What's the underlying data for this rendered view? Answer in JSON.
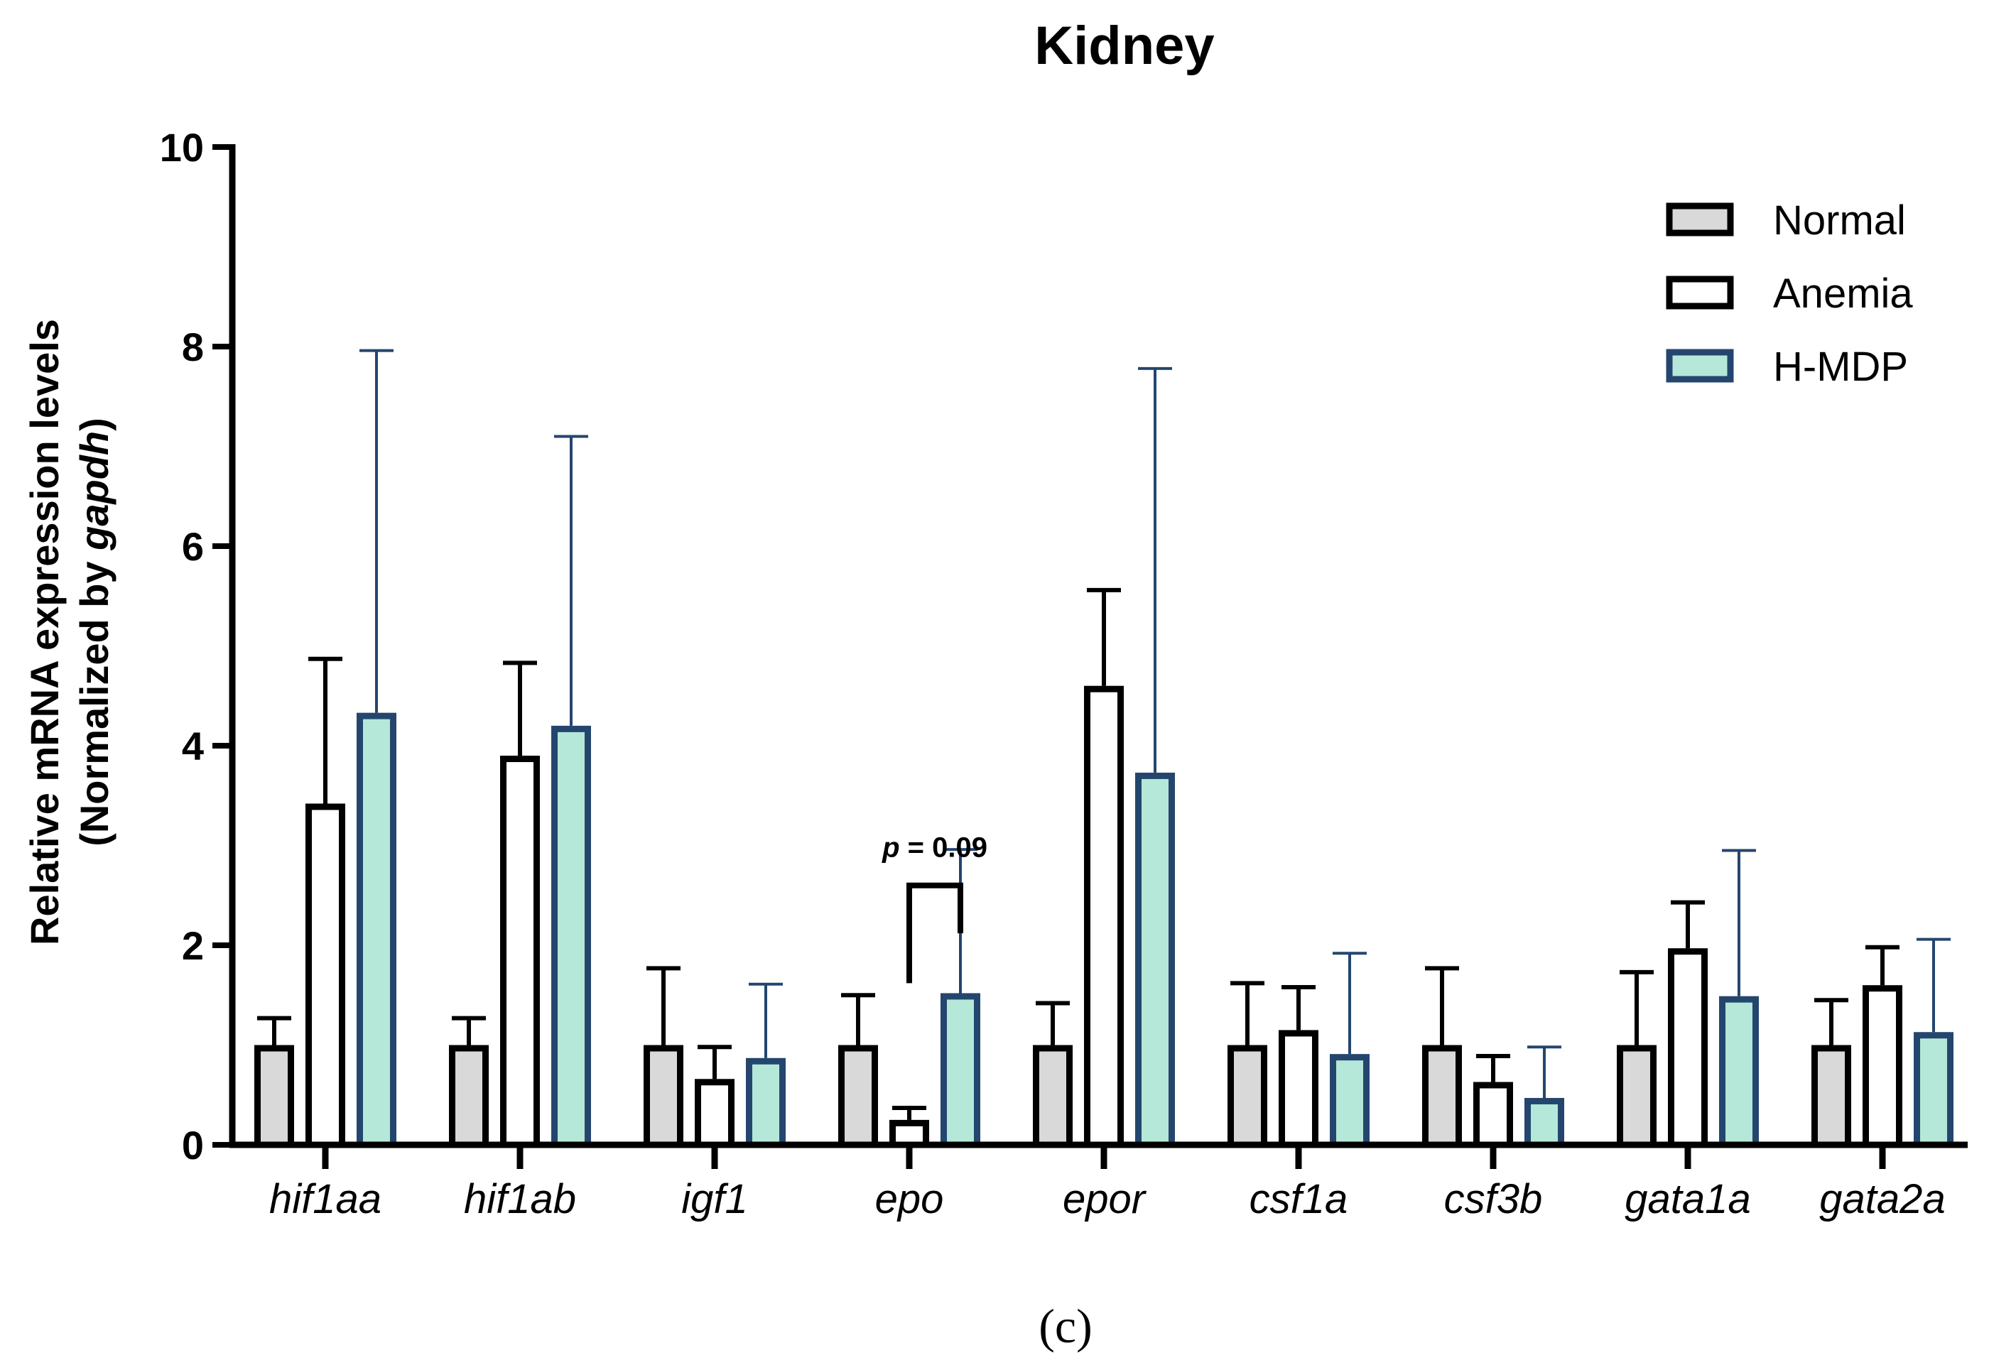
{
  "chart_data": {
    "type": "bar",
    "title": "Kidney",
    "ylabel_line1": "Relative mRNA expression levels",
    "ylabel_line2_prefix": "(Normalized by ",
    "ylabel_line2_italic": "gapdh",
    "ylabel_line2_suffix": ")",
    "xlabel": "",
    "ylim": [
      0,
      10
    ],
    "yticks": [
      "0",
      "2",
      "4",
      "6",
      "8",
      "10"
    ],
    "categories": [
      "hif1aa",
      "hif1ab",
      "igf1",
      "epo",
      "epor",
      "csf1a",
      "csf3b",
      "gata1a",
      "gata2a"
    ],
    "series": [
      {
        "name": "Normal",
        "fill": "#d9d9d9",
        "stroke": "#000000",
        "values": [
          1.0,
          1.0,
          1.0,
          1.0,
          1.0,
          1.0,
          1.0,
          1.0,
          1.0
        ],
        "error": [
          0.27,
          0.27,
          0.77,
          0.5,
          0.42,
          0.62,
          0.77,
          0.73,
          0.45
        ]
      },
      {
        "name": "Anemia",
        "fill": "#ffffff",
        "stroke": "#000000",
        "values": [
          3.42,
          3.9,
          0.66,
          0.25,
          4.6,
          1.15,
          0.63,
          1.97,
          1.6
        ],
        "error": [
          1.45,
          0.93,
          0.32,
          0.12,
          0.96,
          0.43,
          0.26,
          0.46,
          0.38
        ]
      },
      {
        "name": "H-MDP",
        "fill": "#b5e8d8",
        "stroke": "#24466e",
        "values": [
          4.33,
          4.2,
          0.87,
          1.52,
          3.73,
          0.91,
          0.47,
          1.49,
          1.13
        ],
        "error": [
          3.63,
          2.9,
          0.74,
          1.44,
          4.05,
          1.01,
          0.51,
          1.46,
          0.93
        ]
      }
    ],
    "legend_position": "top-right",
    "grid": false,
    "annotations": [
      {
        "category": "epo",
        "from_series": "Anemia",
        "to_series": "H-MDP",
        "text_italic": "p",
        "text_rest": " = 0.09"
      }
    ]
  },
  "caption": "(c)"
}
